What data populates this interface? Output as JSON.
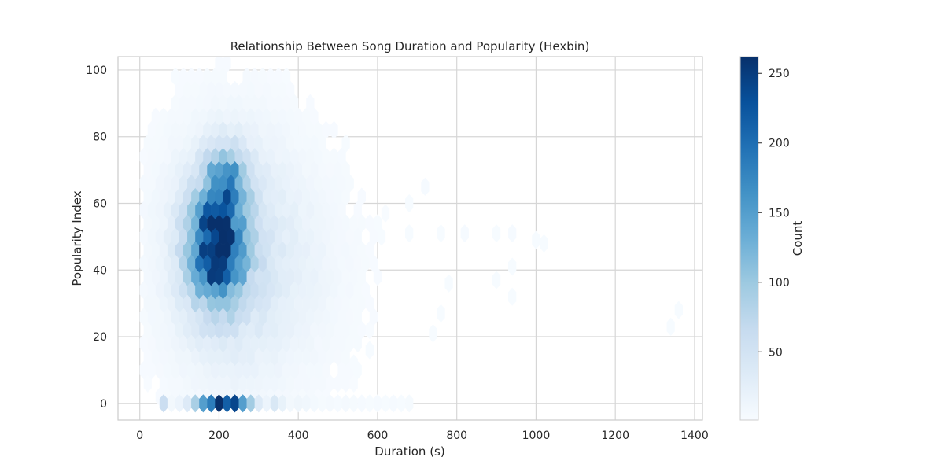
{
  "chart_data": {
    "type": "heatmap",
    "subtype": "hexbin",
    "title": "Relationship Between Song Duration and Popularity (Hexbin)",
    "xlabel": "Duration (s)",
    "ylabel": "Popularity Index",
    "xlim": [
      -55,
      1420
    ],
    "ylim": [
      -5,
      104
    ],
    "xticks": [
      0,
      200,
      400,
      600,
      800,
      1000,
      1200,
      1400
    ],
    "yticks": [
      0,
      20,
      40,
      60,
      80,
      100
    ],
    "grid": true,
    "colormap": "Blues",
    "colorbar": {
      "label": "Count",
      "range": [
        1,
        262
      ],
      "ticks": [
        50,
        100,
        150,
        200,
        250
      ],
      "low_color": "#f7fbff",
      "high_color": "#08306b"
    },
    "hex_bin_size": {
      "duration": 20,
      "popularity": 4
    },
    "density_model": {
      "main_center": {
        "duration": 195,
        "popularity": 48
      },
      "main_spread": {
        "duration": 48,
        "popularity": 12
      },
      "secondary_center": {
        "duration": 215,
        "popularity": 64
      },
      "secondary_spread": {
        "duration": 40,
        "popularity": 8
      },
      "main_peak_count": 250,
      "secondary_peak_count": 180
    },
    "zero_popularity_row": {
      "popularity": 0,
      "durations": [
        60,
        80,
        100,
        120,
        140,
        160,
        180,
        200,
        220,
        240,
        260,
        280,
        300,
        320,
        340,
        360,
        380,
        400,
        420,
        440,
        460,
        480,
        500,
        520,
        540,
        560,
        580,
        600,
        620,
        640,
        660,
        680
      ],
      "counts": [
        60,
        8,
        15,
        35,
        90,
        150,
        185,
        262,
        215,
        240,
        150,
        95,
        35,
        15,
        40,
        20,
        8,
        12,
        10,
        6,
        4,
        5,
        3,
        5,
        4,
        3,
        2,
        3,
        2,
        3,
        2,
        4
      ]
    },
    "outliers": [
      {
        "duration": 720,
        "popularity": 65,
        "count": 3
      },
      {
        "duration": 680,
        "popularity": 60,
        "count": 2
      },
      {
        "duration": 760,
        "popularity": 51,
        "count": 2
      },
      {
        "duration": 820,
        "popularity": 51,
        "count": 3
      },
      {
        "duration": 900,
        "popularity": 51,
        "count": 2
      },
      {
        "duration": 940,
        "popularity": 51,
        "count": 3
      },
      {
        "duration": 1000,
        "popularity": 49,
        "count": 2
      },
      {
        "duration": 1020,
        "popularity": 48,
        "count": 2
      },
      {
        "duration": 940,
        "popularity": 41,
        "count": 2
      },
      {
        "duration": 900,
        "popularity": 37,
        "count": 2
      },
      {
        "duration": 940,
        "popularity": 32,
        "count": 2
      },
      {
        "duration": 780,
        "popularity": 36,
        "count": 2
      },
      {
        "duration": 760,
        "popularity": 27,
        "count": 2
      },
      {
        "duration": 740,
        "popularity": 21,
        "count": 2
      },
      {
        "duration": 1360,
        "popularity": 28,
        "count": 2
      },
      {
        "duration": 1340,
        "popularity": 23,
        "count": 2
      },
      {
        "duration": 540,
        "popularity": 12,
        "count": 2
      },
      {
        "duration": 580,
        "popularity": 16,
        "count": 2
      },
      {
        "duration": 680,
        "popularity": 51,
        "count": 2
      },
      {
        "duration": 620,
        "popularity": 57,
        "count": 1
      }
    ]
  }
}
